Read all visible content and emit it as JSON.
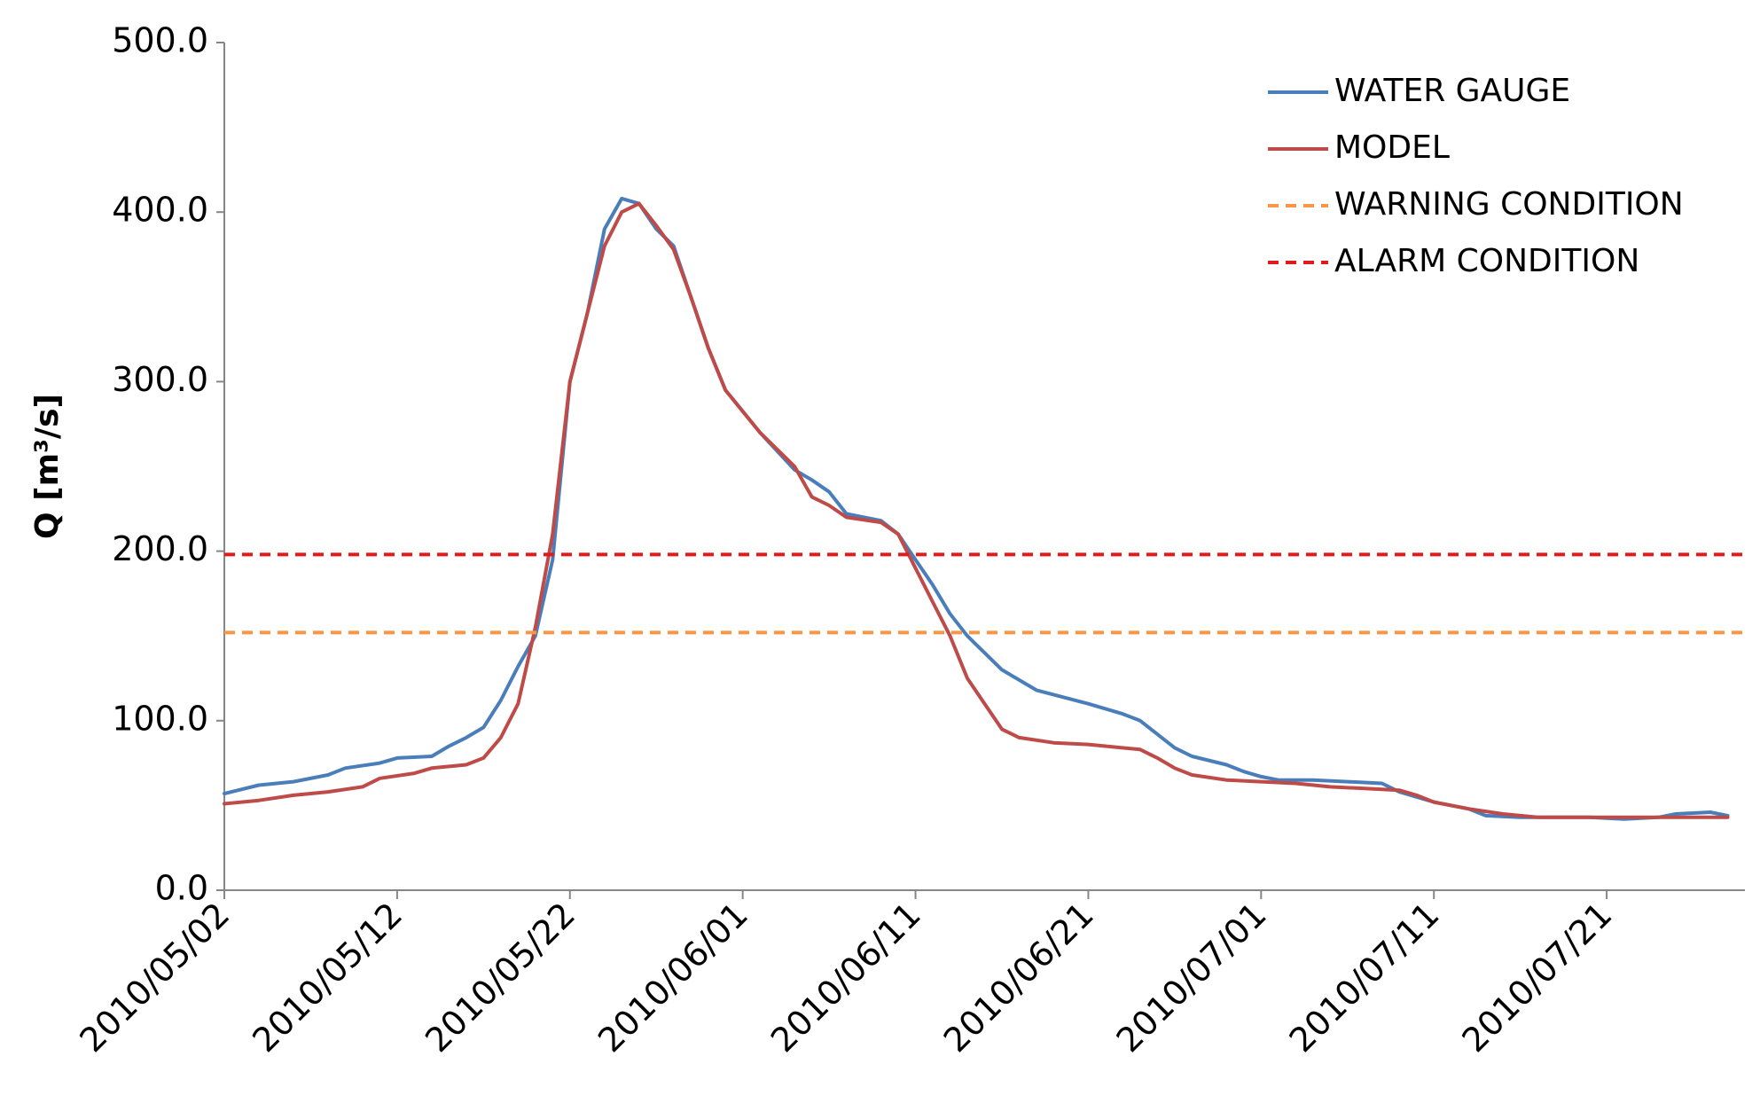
{
  "chart_data": {
    "type": "line",
    "title": "",
    "xlabel": "",
    "ylabel": "Q [m³/s]",
    "ylim": [
      0,
      500
    ],
    "xlim": [
      "2010/05/02",
      "2010/07/29"
    ],
    "y_ticks": [
      "0.0",
      "100.0",
      "200.0",
      "300.0",
      "400.0",
      "500.0"
    ],
    "x_ticks": [
      "2010/05/02",
      "2010/05/12",
      "2010/05/22",
      "2010/06/01",
      "2010/06/11",
      "2010/06/21",
      "2010/07/01",
      "2010/07/11",
      "2010/07/21"
    ],
    "grid": false,
    "legend_position": "top-right",
    "series": [
      {
        "name": "WATER GAUGE",
        "color": "#4a7ebb",
        "style": "solid",
        "points": [
          [
            "2010/05/02",
            57
          ],
          [
            "2010/05/04",
            62
          ],
          [
            "2010/05/06",
            64
          ],
          [
            "2010/05/08",
            68
          ],
          [
            "2010/05/09",
            72
          ],
          [
            "2010/05/11",
            75
          ],
          [
            "2010/05/12",
            78
          ],
          [
            "2010/05/14",
            79
          ],
          [
            "2010/05/15",
            85
          ],
          [
            "2010/05/16",
            90
          ],
          [
            "2010/05/17",
            96
          ],
          [
            "2010/05/18",
            112
          ],
          [
            "2010/05/19",
            132
          ],
          [
            "2010/05/20",
            150
          ],
          [
            "2010/05/21",
            195
          ],
          [
            "2010/05/22",
            300
          ],
          [
            "2010/05/23",
            340
          ],
          [
            "2010/05/24",
            390
          ],
          [
            "2010/05/25",
            408
          ],
          [
            "2010/05/26",
            405
          ],
          [
            "2010/05/27",
            390
          ],
          [
            "2010/05/28",
            380
          ],
          [
            "2010/05/29",
            350
          ],
          [
            "2010/05/30",
            320
          ],
          [
            "2010/05/31",
            295
          ],
          [
            "2010/06/02",
            270
          ],
          [
            "2010/06/04",
            248
          ],
          [
            "2010/06/05",
            242
          ],
          [
            "2010/06/06",
            235
          ],
          [
            "2010/06/07",
            222
          ],
          [
            "2010/06/09",
            218
          ],
          [
            "2010/06/10",
            210
          ],
          [
            "2010/06/11",
            195
          ],
          [
            "2010/06/12",
            180
          ],
          [
            "2010/06/13",
            163
          ],
          [
            "2010/06/14",
            150
          ],
          [
            "2010/06/16",
            130
          ],
          [
            "2010/06/18",
            118
          ],
          [
            "2010/06/21",
            110
          ],
          [
            "2010/06/23",
            104
          ],
          [
            "2010/06/24",
            100
          ],
          [
            "2010/06/26",
            84
          ],
          [
            "2010/06/27",
            79
          ],
          [
            "2010/06/29",
            74
          ],
          [
            "2010/06/30",
            70
          ],
          [
            "2010/07/01",
            67
          ],
          [
            "2010/07/02",
            65
          ],
          [
            "2010/07/04",
            65
          ],
          [
            "2010/07/06",
            64
          ],
          [
            "2010/07/08",
            63
          ],
          [
            "2010/07/09",
            58
          ],
          [
            "2010/07/10",
            55
          ],
          [
            "2010/07/11",
            52
          ],
          [
            "2010/07/13",
            48
          ],
          [
            "2010/07/14",
            44
          ],
          [
            "2010/07/16",
            43
          ],
          [
            "2010/07/18",
            43
          ],
          [
            "2010/07/20",
            43
          ],
          [
            "2010/07/22",
            42
          ],
          [
            "2010/07/24",
            43
          ],
          [
            "2010/07/25",
            45
          ],
          [
            "2010/07/27",
            46
          ],
          [
            "2010/07/28",
            44
          ]
        ]
      },
      {
        "name": "MODEL",
        "color": "#be4b48",
        "style": "solid",
        "points": [
          [
            "2010/05/02",
            51
          ],
          [
            "2010/05/04",
            53
          ],
          [
            "2010/05/06",
            56
          ],
          [
            "2010/05/08",
            58
          ],
          [
            "2010/05/10",
            61
          ],
          [
            "2010/05/11",
            66
          ],
          [
            "2010/05/13",
            69
          ],
          [
            "2010/05/14",
            72
          ],
          [
            "2010/05/16",
            74
          ],
          [
            "2010/05/17",
            78
          ],
          [
            "2010/05/18",
            90
          ],
          [
            "2010/05/19",
            110
          ],
          [
            "2010/05/20",
            155
          ],
          [
            "2010/05/21",
            210
          ],
          [
            "2010/05/22",
            300
          ],
          [
            "2010/05/23",
            340
          ],
          [
            "2010/05/24",
            380
          ],
          [
            "2010/05/25",
            400
          ],
          [
            "2010/05/26",
            405
          ],
          [
            "2010/05/27",
            392
          ],
          [
            "2010/05/28",
            378
          ],
          [
            "2010/05/29",
            350
          ],
          [
            "2010/05/30",
            320
          ],
          [
            "2010/05/31",
            295
          ],
          [
            "2010/06/02",
            270
          ],
          [
            "2010/06/04",
            250
          ],
          [
            "2010/06/05",
            232
          ],
          [
            "2010/06/06",
            227
          ],
          [
            "2010/06/07",
            220
          ],
          [
            "2010/06/09",
            217
          ],
          [
            "2010/06/10",
            210
          ],
          [
            "2010/06/11",
            190
          ],
          [
            "2010/06/12",
            170
          ],
          [
            "2010/06/13",
            150
          ],
          [
            "2010/06/14",
            125
          ],
          [
            "2010/06/15",
            110
          ],
          [
            "2010/06/16",
            95
          ],
          [
            "2010/06/17",
            90
          ],
          [
            "2010/06/19",
            87
          ],
          [
            "2010/06/21",
            86
          ],
          [
            "2010/06/24",
            83
          ],
          [
            "2010/06/25",
            78
          ],
          [
            "2010/06/26",
            72
          ],
          [
            "2010/06/27",
            68
          ],
          [
            "2010/06/29",
            65
          ],
          [
            "2010/07/01",
            64
          ],
          [
            "2010/07/03",
            63
          ],
          [
            "2010/07/05",
            61
          ],
          [
            "2010/07/07",
            60
          ],
          [
            "2010/07/09",
            59
          ],
          [
            "2010/07/10",
            56
          ],
          [
            "2010/07/11",
            52
          ],
          [
            "2010/07/13",
            48
          ],
          [
            "2010/07/15",
            45
          ],
          [
            "2010/07/17",
            43
          ],
          [
            "2010/07/19",
            43
          ],
          [
            "2010/07/22",
            43
          ],
          [
            "2010/07/25",
            43
          ],
          [
            "2010/07/28",
            43
          ]
        ]
      },
      {
        "name": "WARNING CONDITION",
        "color": "#f79646",
        "style": "dashed",
        "points": [
          [
            "2010/05/02",
            152
          ],
          [
            "2010/07/29",
            152
          ]
        ]
      },
      {
        "name": "ALARM CONDITION",
        "color": "#e01b1b",
        "style": "dashed",
        "points": [
          [
            "2010/05/02",
            198
          ],
          [
            "2010/07/29",
            198
          ]
        ]
      }
    ]
  }
}
